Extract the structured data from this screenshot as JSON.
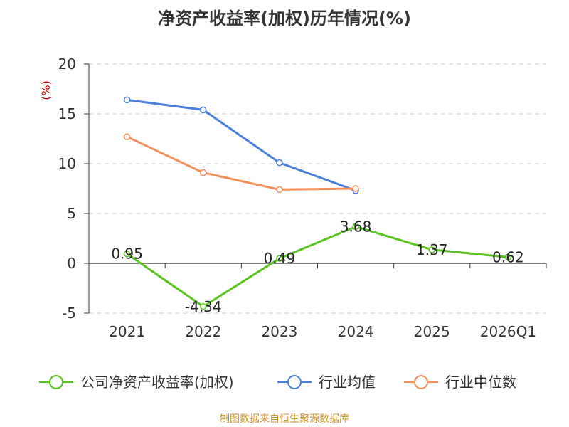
{
  "chart_data": {
    "type": "line",
    "title": "净资产收益率(加权)历年情况(%)",
    "ylabel": "(%)",
    "categories": [
      "2021",
      "2022",
      "2023",
      "2024",
      "2025",
      "2026Q1"
    ],
    "ylim": [
      -5,
      20
    ],
    "yticks": [
      "20",
      "15",
      "10",
      "5",
      "0",
      "-5"
    ],
    "grid": true,
    "legend_position": "bottom",
    "series": [
      {
        "name": "公司净资产收益率(加权)",
        "color": "#5ac31f",
        "values": [
          0.95,
          -4.34,
          0.49,
          3.68,
          1.37,
          0.62
        ],
        "labels": [
          "0.95",
          "-4.34",
          "0.49",
          "3.68",
          "1.37",
          "0.62"
        ]
      },
      {
        "name": "行业均值",
        "color": "#4a7fdc",
        "values": [
          16.4,
          15.4,
          10.1,
          7.3,
          null,
          null
        ]
      },
      {
        "name": "行业中位数",
        "color": "#f5905a",
        "values": [
          12.7,
          9.1,
          7.4,
          7.5,
          null,
          null
        ]
      }
    ]
  },
  "source": "制图数据来自恒生聚源数据库",
  "source_color": "#c8922e",
  "ylabel_color": "#cc0000"
}
